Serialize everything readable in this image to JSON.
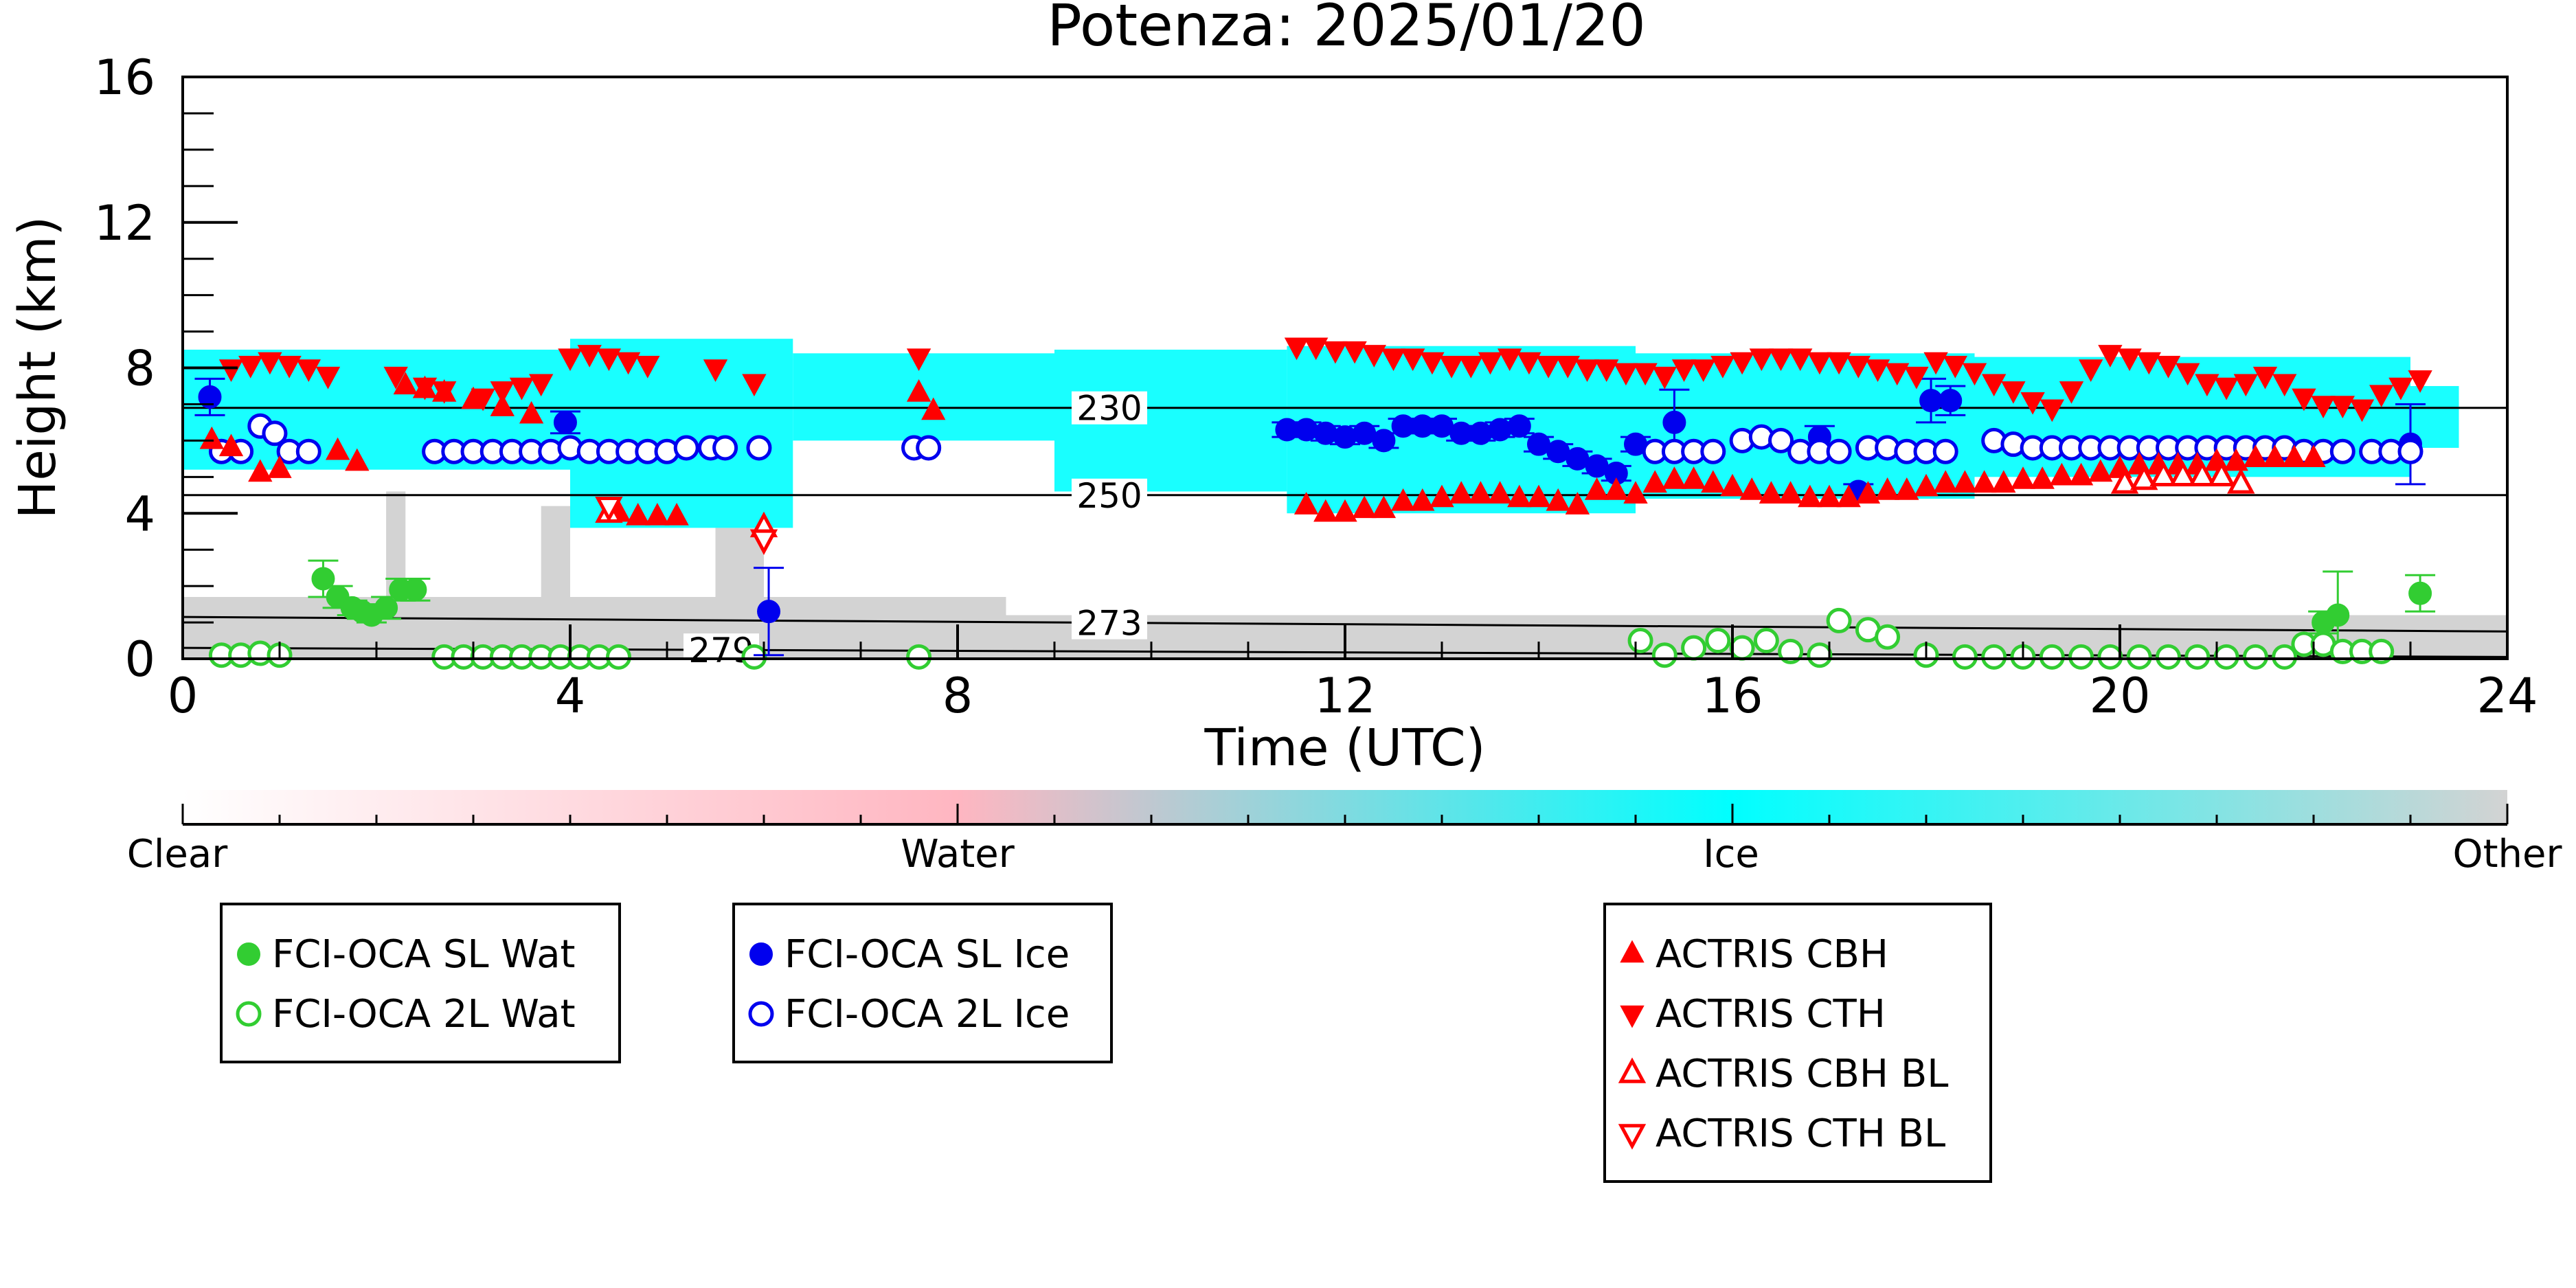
{
  "chart_data": {
    "type": "scatter",
    "title": "Potenza: 2025/01/20",
    "xlabel": "Time (UTC)",
    "ylabel": "Height (km)",
    "xlim": [
      0,
      24
    ],
    "ylim": [
      0,
      16
    ],
    "x_ticks": [
      "0",
      "4",
      "8",
      "12",
      "16",
      "20",
      "24"
    ],
    "y_ticks": [
      "0",
      "4",
      "8",
      "12",
      "16"
    ],
    "isotherms": [
      {
        "label": "230",
        "x": [
          0,
          24
        ],
        "y": [
          6.9,
          6.9
        ]
      },
      {
        "label": "250",
        "x": [
          0,
          24
        ],
        "y": [
          4.5,
          4.5
        ]
      },
      {
        "label": "273",
        "x": [
          0,
          24
        ],
        "y": [
          1.15,
          0.75
        ]
      },
      {
        "label": "279",
        "x": [
          0,
          24
        ],
        "y": [
          0.3,
          0.05
        ]
      }
    ],
    "colorbar": {
      "labels": [
        "Clear",
        "Water",
        "Ice",
        "Other"
      ],
      "colors": [
        "#ffffff",
        "#ffb6c1",
        "#00ffff",
        "#d3d3d3"
      ]
    },
    "classification": {
      "ice_regions": [
        {
          "x": [
            0.0,
            4.0
          ],
          "y": [
            5.2,
            8.5
          ]
        },
        {
          "x": [
            4.0,
            6.3
          ],
          "y": [
            3.6,
            8.8
          ]
        },
        {
          "x": [
            6.3,
            9.0
          ],
          "y": [
            6.0,
            8.4
          ]
        },
        {
          "x": [
            9.0,
            11.4
          ],
          "y": [
            4.6,
            8.5
          ]
        },
        {
          "x": [
            11.4,
            15.0
          ],
          "y": [
            4.0,
            8.6
          ]
        },
        {
          "x": [
            15.0,
            18.5
          ],
          "y": [
            4.4,
            8.4
          ]
        },
        {
          "x": [
            18.5,
            23.0
          ],
          "y": [
            5.0,
            8.3
          ]
        },
        {
          "x": [
            23.0,
            23.5
          ],
          "y": [
            5.8,
            7.5
          ]
        }
      ],
      "other_regions": [
        {
          "x": [
            0.0,
            8.5
          ],
          "y": [
            0.0,
            1.7
          ]
        },
        {
          "x": [
            8.5,
            24.0
          ],
          "y": [
            0.0,
            1.2
          ]
        },
        {
          "x": [
            2.1,
            2.3
          ],
          "y": [
            0.0,
            4.6
          ]
        },
        {
          "x": [
            3.7,
            4.0
          ],
          "y": [
            0.0,
            4.2
          ]
        },
        {
          "x": [
            5.5,
            6.0
          ],
          "y": [
            0.0,
            3.6
          ]
        }
      ]
    },
    "legend": {
      "groups": [
        [
          "FCI-OCA SL Wat",
          "FCI-OCA 2L Wat"
        ],
        [
          "FCI-OCA SL Ice",
          "FCI-OCA 2L Ice"
        ],
        [
          "ACTRIS CBH",
          "ACTRIS CTH",
          "ACTRIS CBH BL",
          "ACTRIS CTH BL"
        ]
      ]
    },
    "series": [
      {
        "name": "FCI-OCA SL Wat",
        "color": "#32cd32",
        "marker": "circle-filled",
        "x": [
          1.45,
          1.6,
          1.75,
          1.85,
          1.95,
          2.1,
          2.25,
          2.4,
          22.1,
          22.25,
          23.1
        ],
        "y": [
          2.2,
          1.7,
          1.4,
          1.3,
          1.2,
          1.4,
          1.9,
          1.9,
          1.0,
          1.2,
          1.8
        ],
        "yerr": [
          0.5,
          0.3,
          0.2,
          0.2,
          0.2,
          0.3,
          0.3,
          0.3,
          0.3,
          1.2,
          0.5
        ]
      },
      {
        "name": "FCI-OCA 2L Wat",
        "color": "#32cd32",
        "marker": "circle-open",
        "x": [
          0.4,
          0.6,
          0.8,
          1.0,
          2.7,
          2.9,
          3.1,
          3.3,
          3.5,
          3.7,
          3.9,
          4.1,
          4.3,
          4.5,
          5.9,
          7.6,
          15.05,
          15.3,
          15.6,
          15.85,
          16.1,
          16.35,
          16.6,
          16.9,
          17.1,
          17.4,
          17.6,
          18.0,
          18.4,
          18.7,
          19.0,
          19.3,
          19.6,
          19.9,
          20.2,
          20.5,
          20.8,
          21.1,
          21.4,
          21.7,
          21.9,
          22.1,
          22.3,
          22.5,
          22.7
        ],
        "y": [
          0.1,
          0.1,
          0.15,
          0.1,
          0.05,
          0.05,
          0.05,
          0.05,
          0.05,
          0.05,
          0.05,
          0.05,
          0.05,
          0.05,
          0.05,
          0.05,
          0.5,
          0.1,
          0.3,
          0.5,
          0.3,
          0.5,
          0.2,
          0.1,
          1.05,
          0.8,
          0.6,
          0.1,
          0.05,
          0.05,
          0.05,
          0.05,
          0.05,
          0.05,
          0.05,
          0.05,
          0.05,
          0.05,
          0.05,
          0.05,
          0.4,
          0.4,
          0.2,
          0.2,
          0.2
        ]
      },
      {
        "name": "FCI-OCA SL Ice",
        "color": "#0000ee",
        "marker": "circle-filled",
        "x": [
          0.28,
          3.95,
          6.05,
          11.4,
          11.6,
          11.8,
          12.0,
          12.2,
          12.4,
          12.6,
          12.8,
          13.0,
          13.2,
          13.4,
          13.6,
          13.8,
          14.0,
          14.2,
          14.4,
          14.6,
          14.8,
          15.0,
          15.4,
          16.9,
          17.3,
          18.05,
          18.25,
          23.0
        ],
        "y": [
          7.2,
          6.5,
          1.3,
          6.3,
          6.3,
          6.2,
          6.1,
          6.2,
          6.0,
          6.4,
          6.4,
          6.4,
          6.2,
          6.2,
          6.3,
          6.4,
          5.9,
          5.7,
          5.5,
          5.3,
          5.1,
          5.9,
          6.5,
          6.1,
          4.6,
          7.1,
          7.1,
          5.9
        ],
        "yerr": [
          0.5,
          0.3,
          1.2,
          0.2,
          0.2,
          0.2,
          0.2,
          0.2,
          0.2,
          0.2,
          0.2,
          0.2,
          0.2,
          0.2,
          0.2,
          0.2,
          0.2,
          0.2,
          0.2,
          0.2,
          0.2,
          0.2,
          0.9,
          0.3,
          0.2,
          0.6,
          0.4,
          1.1
        ]
      },
      {
        "name": "FCI-OCA 2L Ice",
        "color": "#0000ee",
        "marker": "circle-open",
        "x": [
          0.4,
          0.6,
          0.8,
          0.95,
          1.1,
          1.3,
          2.6,
          2.8,
          3.0,
          3.2,
          3.4,
          3.6,
          3.8,
          4.0,
          4.2,
          4.4,
          4.6,
          4.8,
          5.0,
          5.2,
          5.45,
          5.6,
          5.95,
          7.55,
          7.7,
          15.2,
          15.4,
          15.6,
          15.8,
          16.1,
          16.3,
          16.5,
          16.7,
          16.9,
          17.1,
          17.4,
          17.6,
          17.8,
          18.0,
          18.2,
          18.7,
          18.9,
          19.1,
          19.3,
          19.5,
          19.7,
          19.9,
          20.1,
          20.3,
          20.5,
          20.7,
          20.9,
          21.1,
          21.3,
          21.5,
          21.7,
          21.9,
          22.1,
          22.3,
          22.6,
          22.8,
          23.0
        ],
        "y": [
          5.7,
          5.7,
          6.4,
          6.2,
          5.7,
          5.7,
          5.7,
          5.7,
          5.7,
          5.7,
          5.7,
          5.7,
          5.7,
          5.8,
          5.7,
          5.7,
          5.7,
          5.7,
          5.7,
          5.8,
          5.8,
          5.8,
          5.8,
          5.8,
          5.8,
          5.7,
          5.7,
          5.7,
          5.7,
          6.0,
          6.1,
          6.0,
          5.7,
          5.7,
          5.7,
          5.8,
          5.8,
          5.7,
          5.7,
          5.7,
          6.0,
          5.9,
          5.8,
          5.8,
          5.8,
          5.8,
          5.8,
          5.8,
          5.8,
          5.8,
          5.8,
          5.8,
          5.8,
          5.8,
          5.8,
          5.8,
          5.7,
          5.7,
          5.7,
          5.7,
          5.7,
          5.7
        ]
      },
      {
        "name": "ACTRIS CBH",
        "color": "#ff0000",
        "marker": "triangle-up-filled",
        "x": [
          0.3,
          0.5,
          0.8,
          1.0,
          1.6,
          1.8,
          2.3,
          2.5,
          2.7,
          3.0,
          3.3,
          3.6,
          4.5,
          4.7,
          4.9,
          5.1,
          7.6,
          7.75,
          11.6,
          11.8,
          12.0,
          12.2,
          12.4,
          12.6,
          12.8,
          13.0,
          13.2,
          13.4,
          13.6,
          13.8,
          14.0,
          14.2,
          14.4,
          14.6,
          14.8,
          15.0,
          15.2,
          15.4,
          15.6,
          15.8,
          16.0,
          16.2,
          16.4,
          16.6,
          16.8,
          17.0,
          17.2,
          17.4,
          17.6,
          17.8,
          18.0,
          18.2,
          18.4,
          18.6,
          18.8,
          19.0,
          19.2,
          19.4,
          19.6,
          19.8,
          20.0,
          20.2,
          20.4,
          20.6,
          20.8,
          21.0,
          21.2,
          21.4,
          21.6,
          21.8,
          22.0
        ],
        "y": [
          6.0,
          5.8,
          5.1,
          5.2,
          5.7,
          5.4,
          7.5,
          7.4,
          7.3,
          7.1,
          6.9,
          6.7,
          4.0,
          3.9,
          3.9,
          3.9,
          7.3,
          6.8,
          4.2,
          4.0,
          4.0,
          4.1,
          4.1,
          4.3,
          4.3,
          4.4,
          4.5,
          4.5,
          4.5,
          4.4,
          4.4,
          4.3,
          4.2,
          4.6,
          4.6,
          4.5,
          4.8,
          4.9,
          4.9,
          4.8,
          4.7,
          4.6,
          4.5,
          4.5,
          4.4,
          4.4,
          4.4,
          4.5,
          4.6,
          4.6,
          4.7,
          4.8,
          4.8,
          4.8,
          4.8,
          4.9,
          4.9,
          5.0,
          5.0,
          5.1,
          5.2,
          5.3,
          5.3,
          5.3,
          5.3,
          5.4,
          5.4,
          5.5,
          5.5,
          5.5,
          5.5
        ]
      },
      {
        "name": "ACTRIS CTH",
        "color": "#ff0000",
        "marker": "triangle-down-filled",
        "x": [
          0.5,
          0.7,
          0.9,
          1.1,
          1.3,
          1.5,
          2.2,
          2.5,
          2.7,
          3.1,
          3.3,
          3.5,
          3.7,
          4.0,
          4.2,
          4.4,
          4.6,
          4.8,
          5.5,
          5.9,
          7.6,
          11.5,
          11.7,
          11.9,
          12.1,
          12.3,
          12.5,
          12.7,
          12.9,
          13.1,
          13.3,
          13.5,
          13.7,
          13.9,
          14.1,
          14.3,
          14.5,
          14.7,
          14.9,
          15.1,
          15.3,
          15.5,
          15.7,
          15.9,
          16.1,
          16.3,
          16.5,
          16.7,
          16.9,
          17.1,
          17.3,
          17.5,
          17.7,
          17.9,
          18.1,
          18.3,
          18.5,
          18.7,
          18.9,
          19.1,
          19.3,
          19.5,
          19.7,
          19.9,
          20.1,
          20.3,
          20.5,
          20.7,
          20.9,
          21.1,
          21.3,
          21.5,
          21.7,
          21.9,
          22.1,
          22.3,
          22.5,
          22.7,
          22.9,
          23.1
        ],
        "y": [
          8.0,
          8.1,
          8.2,
          8.1,
          8.0,
          7.8,
          7.8,
          7.5,
          7.4,
          7.2,
          7.4,
          7.5,
          7.6,
          8.3,
          8.4,
          8.3,
          8.2,
          8.1,
          8.0,
          7.6,
          8.3,
          8.6,
          8.6,
          8.5,
          8.5,
          8.4,
          8.3,
          8.3,
          8.2,
          8.1,
          8.1,
          8.2,
          8.3,
          8.2,
          8.1,
          8.1,
          8.0,
          8.0,
          7.9,
          7.9,
          7.8,
          8.0,
          8.0,
          8.1,
          8.2,
          8.3,
          8.3,
          8.3,
          8.2,
          8.2,
          8.1,
          8.0,
          7.9,
          7.8,
          8.2,
          8.1,
          7.9,
          7.6,
          7.4,
          7.1,
          6.9,
          7.4,
          8.0,
          8.4,
          8.3,
          8.2,
          8.1,
          7.9,
          7.6,
          7.5,
          7.6,
          7.8,
          7.6,
          7.2,
          7.0,
          7.0,
          6.9,
          7.3,
          7.5,
          7.7
        ]
      },
      {
        "name": "ACTRIS CBH BL",
        "color": "#ff0000",
        "marker": "triangle-up-open",
        "x": [
          4.4,
          6.0,
          20.05,
          20.25,
          20.45,
          20.65,
          20.85,
          21.05,
          21.25
        ],
        "y": [
          4.0,
          3.6,
          4.8,
          4.9,
          5.0,
          5.0,
          5.0,
          5.0,
          4.8
        ]
      },
      {
        "name": "ACTRIS CTH BL",
        "color": "#ff0000",
        "marker": "triangle-down-open",
        "x": [
          4.4,
          6.0
        ],
        "y": [
          4.2,
          3.3
        ]
      }
    ]
  }
}
